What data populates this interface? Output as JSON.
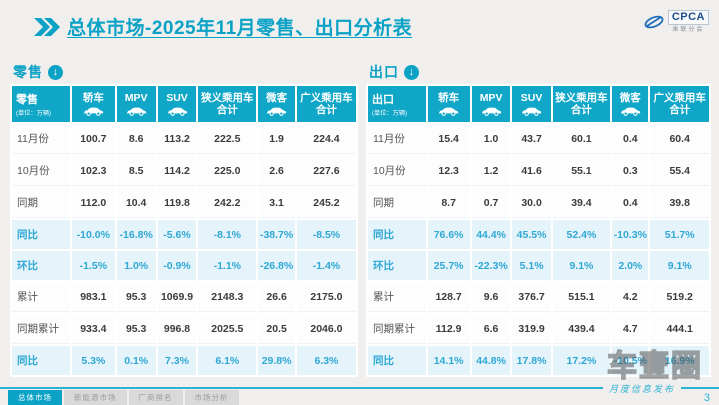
{
  "header": {
    "title": "总体市场-2025年11月零售、出口分析表",
    "logo": {
      "name": "CPCA",
      "subtitle": "乘联分会"
    }
  },
  "icons": {
    "down_arrow": "↓"
  },
  "tables": [
    {
      "id": "retail",
      "section_label": "零售",
      "corner_label": "零售",
      "unit": "(单位：万辆)",
      "columns": [
        "轿车",
        "MPV",
        "SUV",
        "狭义乘用车|合计",
        "微客",
        "广义乘用车|合计"
      ],
      "rows": [
        {
          "label": "11月份",
          "kind": "data",
          "cells": [
            "100.7",
            "8.6",
            "113.2",
            "222.5",
            "1.9",
            "224.4"
          ]
        },
        {
          "label": "10月份",
          "kind": "data",
          "cells": [
            "102.3",
            "8.5",
            "114.2",
            "225.0",
            "2.6",
            "227.6"
          ]
        },
        {
          "label": "同期",
          "kind": "data",
          "cells": [
            "112.0",
            "10.4",
            "119.8",
            "242.2",
            "3.1",
            "245.2"
          ]
        },
        {
          "label": "同比",
          "kind": "pct",
          "cells": [
            "-10.0%",
            "-16.8%",
            "-5.6%",
            "-8.1%",
            "-38.7%",
            "-8.5%"
          ]
        },
        {
          "label": "环比",
          "kind": "pct",
          "cells": [
            "-1.5%",
            "1.0%",
            "-0.9%",
            "-1.1%",
            "-26.8%",
            "-1.4%"
          ]
        },
        {
          "label": "累计",
          "kind": "data",
          "cells": [
            "983.1",
            "95.3",
            "1069.9",
            "2148.3",
            "26.6",
            "2175.0"
          ]
        },
        {
          "label": "同期累计",
          "kind": "data",
          "cells": [
            "933.4",
            "95.3",
            "996.8",
            "2025.5",
            "20.5",
            "2046.0"
          ]
        },
        {
          "label": "同比",
          "kind": "pct",
          "cells": [
            "5.3%",
            "0.1%",
            "7.3%",
            "6.1%",
            "29.8%",
            "6.3%"
          ]
        }
      ]
    },
    {
      "id": "export",
      "section_label": "出口",
      "corner_label": "出口",
      "unit": "(单位：万辆)",
      "columns": [
        "轿车",
        "MPV",
        "SUV",
        "狭义乘用车|合计",
        "微客",
        "广义乘用车|合计"
      ],
      "rows": [
        {
          "label": "11月份",
          "kind": "data",
          "cells": [
            "15.4",
            "1.0",
            "43.7",
            "60.1",
            "0.4",
            "60.4"
          ]
        },
        {
          "label": "10月份",
          "kind": "data",
          "cells": [
            "12.3",
            "1.2",
            "41.6",
            "55.1",
            "0.3",
            "55.4"
          ]
        },
        {
          "label": "同期",
          "kind": "data",
          "cells": [
            "8.7",
            "0.7",
            "30.0",
            "39.4",
            "0.4",
            "39.8"
          ]
        },
        {
          "label": "同比",
          "kind": "pct",
          "cells": [
            "76.6%",
            "44.4%",
            "45.5%",
            "52.4%",
            "-10.3%",
            "51.7%"
          ]
        },
        {
          "label": "环比",
          "kind": "pct",
          "cells": [
            "25.7%",
            "-22.3%",
            "5.1%",
            "9.1%",
            "2.0%",
            "9.1%"
          ]
        },
        {
          "label": "累计",
          "kind": "data",
          "cells": [
            "128.7",
            "9.6",
            "376.7",
            "515.1",
            "4.2",
            "519.2"
          ]
        },
        {
          "label": "同期累计",
          "kind": "data",
          "cells": [
            "112.9",
            "6.6",
            "319.9",
            "439.4",
            "4.7",
            "444.1"
          ]
        },
        {
          "label": "同比",
          "kind": "pct",
          "cells": [
            "14.1%",
            "44.8%",
            "17.8%",
            "17.2%",
            "-10.5%",
            "16.9%"
          ]
        }
      ]
    }
  ],
  "tabs": [
    {
      "name": "tab-overall-market",
      "label": "总体市场",
      "active": true
    },
    {
      "name": "tab-nev-market",
      "label": "新能源市场",
      "active": false
    },
    {
      "name": "tab-manufacturer-ranking",
      "label": "厂商排名",
      "active": false
    },
    {
      "name": "tab-market-analysis",
      "label": "市场分析",
      "active": false
    }
  ],
  "footer": {
    "ribbon_label": "月度信息发布",
    "page_number": "3"
  },
  "watermark": {
    "text": "车壹圈"
  },
  "colors": {
    "accent": "#0ba2c6",
    "header_bg": "#10a6c8",
    "pct_bg": "#e5f3fa",
    "pct_text": "#2fa8d5"
  }
}
